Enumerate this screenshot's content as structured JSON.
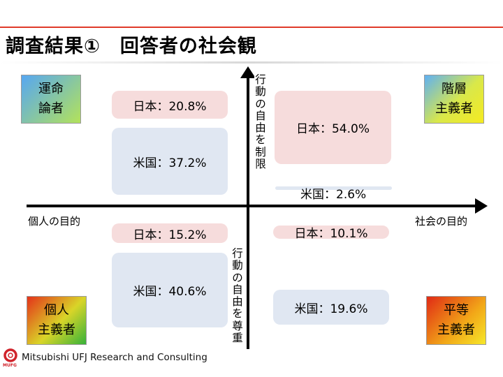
{
  "title": "調査結果①　回答者の社会観",
  "corners": {
    "fate": [
      "運命",
      "論者"
    ],
    "class": [
      "階層",
      "主義者"
    ],
    "individual": [
      "個人",
      "主義者"
    ],
    "equality": [
      "平等",
      "主義者"
    ]
  },
  "axes": {
    "left": "個人の目的",
    "right": "社会の目的",
    "top": "行動の自由を制限",
    "bottom": "行動の自由を尊重"
  },
  "quadrants": {
    "top_left": {
      "japan": "日本：20.8%",
      "us": "米国：37.2%"
    },
    "top_right": {
      "japan": "日本：54.0%",
      "us": "米国：2.6%"
    },
    "bottom_left": {
      "japan": "日本：15.2%",
      "us": "米国：40.6%"
    },
    "bottom_right": {
      "japan": "日本：10.1%",
      "us": "米国：19.6%"
    }
  },
  "values": {
    "top_left": {
      "japan": 20.8,
      "us": 37.2
    },
    "top_right": {
      "japan": 54.0,
      "us": 2.6
    },
    "bottom_left": {
      "japan": 15.2,
      "us": 40.6
    },
    "bottom_right": {
      "japan": 10.1,
      "us": 19.6
    }
  },
  "footer": {
    "company": "Mitsubishi UFJ Research and Consulting",
    "logo_text": "MUFG"
  },
  "colors": {
    "accent": "#e03a2a",
    "japan_fill": "#f6dcdc",
    "us_fill": "#e0e7f2"
  }
}
